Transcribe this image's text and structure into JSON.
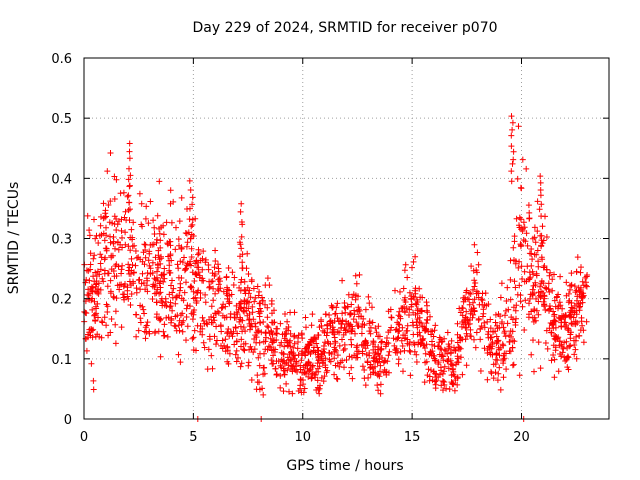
{
  "chart_data": {
    "type": "scatter",
    "title": "Day 229 of 2024, SRMTID for receiver p070",
    "xlabel": "GPS time / hours",
    "ylabel": "SRMTID / TECUs",
    "xlim": [
      0,
      24
    ],
    "ylim": [
      0,
      0.6
    ],
    "x_ticks": [
      0,
      5,
      10,
      15,
      20
    ],
    "x_tick_labels": [
      "0",
      "5",
      "10",
      "15",
      "20"
    ],
    "y_ticks": [
      0,
      0.1,
      0.2,
      0.3,
      0.4,
      0.5,
      0.6
    ],
    "y_tick_labels": [
      "0",
      "0.1",
      "0.2",
      "0.3",
      "0.4",
      "0.5",
      "0.6"
    ],
    "grid": true,
    "marker": "+",
    "color": "#ff0000",
    "envelope": {
      "hours": [
        0,
        0.5,
        1,
        1.5,
        2,
        2.5,
        3,
        3.5,
        4,
        4.5,
        5,
        5.5,
        6,
        6.5,
        7,
        7.5,
        8,
        8.5,
        9,
        9.5,
        10,
        10.5,
        11,
        11.5,
        12,
        12.5,
        13,
        13.5,
        14,
        14.5,
        15,
        15.5,
        16,
        16.5,
        17,
        17.5,
        18,
        18.5,
        19,
        19.5,
        20,
        20.5,
        21,
        21.5,
        22,
        22.5,
        23
      ],
      "median": [
        0.22,
        0.2,
        0.24,
        0.27,
        0.27,
        0.24,
        0.23,
        0.22,
        0.24,
        0.23,
        0.22,
        0.2,
        0.19,
        0.18,
        0.17,
        0.17,
        0.16,
        0.15,
        0.11,
        0.11,
        0.1,
        0.11,
        0.11,
        0.14,
        0.15,
        0.16,
        0.12,
        0.1,
        0.13,
        0.14,
        0.18,
        0.15,
        0.1,
        0.09,
        0.1,
        0.17,
        0.2,
        0.13,
        0.12,
        0.17,
        0.3,
        0.23,
        0.25,
        0.15,
        0.15,
        0.18,
        0.2
      ],
      "spread": [
        0.08,
        0.08,
        0.1,
        0.1,
        0.09,
        0.09,
        0.08,
        0.08,
        0.08,
        0.08,
        0.08,
        0.07,
        0.06,
        0.06,
        0.06,
        0.06,
        0.06,
        0.05,
        0.04,
        0.04,
        0.04,
        0.04,
        0.04,
        0.05,
        0.05,
        0.05,
        0.04,
        0.04,
        0.04,
        0.05,
        0.06,
        0.05,
        0.04,
        0.03,
        0.04,
        0.05,
        0.06,
        0.04,
        0.04,
        0.08,
        0.12,
        0.08,
        0.08,
        0.05,
        0.05,
        0.05,
        0.05
      ],
      "samples_per_hour": 90
    },
    "peaks": [
      {
        "x": 2.1,
        "y": 0.46
      },
      {
        "x": 4.9,
        "y": 0.4
      },
      {
        "x": 7.2,
        "y": 0.36
      },
      {
        "x": 19.6,
        "y": 0.51
      },
      {
        "x": 20.9,
        "y": 0.41
      }
    ],
    "zero_points": [
      {
        "x": 5.2,
        "y": 0
      },
      {
        "x": 8.1,
        "y": 0
      },
      {
        "x": 20.1,
        "y": 0
      }
    ]
  }
}
